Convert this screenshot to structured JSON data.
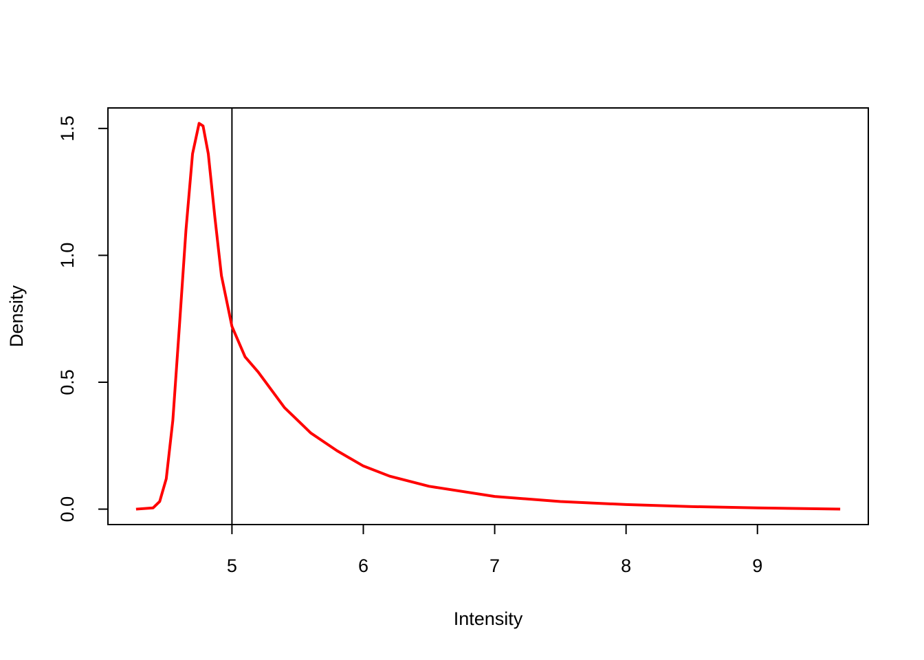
{
  "chart_data": {
    "type": "line",
    "x_label": "Intensity",
    "y_label": "Density",
    "x": [
      4.27,
      4.4,
      4.45,
      4.5,
      4.55,
      4.6,
      4.65,
      4.7,
      4.75,
      4.78,
      4.82,
      4.87,
      4.92,
      5.0,
      5.1,
      5.2,
      5.3,
      5.4,
      5.5,
      5.6,
      5.8,
      6.0,
      6.2,
      6.5,
      7.0,
      7.5,
      8.0,
      8.5,
      9.0,
      9.63
    ],
    "series": [
      {
        "color": "#ff0000",
        "values": [
          0,
          0.005,
          0.03,
          0.12,
          0.35,
          0.72,
          1.1,
          1.4,
          1.52,
          1.51,
          1.4,
          1.15,
          0.92,
          0.72,
          0.6,
          0.54,
          0.47,
          0.4,
          0.35,
          0.3,
          0.23,
          0.17,
          0.13,
          0.09,
          0.05,
          0.03,
          0.018,
          0.01,
          0.005,
          0
        ]
      }
    ],
    "vlines": [
      5
    ],
    "xlim": [
      4.056,
      9.844
    ],
    "xticks": [
      5,
      6,
      7,
      8,
      9
    ],
    "ylim": [
      -0.0608,
      1.5808
    ],
    "yticks": [
      {
        "value": 0,
        "label": "0.0"
      },
      0.5,
      {
        "value": 1,
        "label": "1.0"
      },
      1.5
    ],
    "grid": false
  }
}
